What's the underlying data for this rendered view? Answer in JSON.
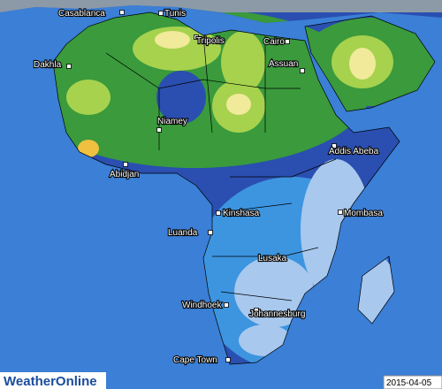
{
  "cities": [
    {
      "label": "Casablanca"
    },
    {
      "label": "Tunis"
    },
    {
      "label": "Tripolis"
    },
    {
      "label": "Cairo"
    },
    {
      "label": "Dakhla"
    },
    {
      "label": "Assuan"
    },
    {
      "label": "Niamey"
    },
    {
      "label": "Addis Abeba"
    },
    {
      "label": "Abidjan"
    },
    {
      "label": "Kinshasa"
    },
    {
      "label": "Mombasa"
    },
    {
      "label": "Luanda"
    },
    {
      "label": "Lusaka"
    },
    {
      "label": "Windhoek"
    },
    {
      "label": "Johannesburg"
    },
    {
      "label": "Cape Town"
    }
  ],
  "logo": "WeatherOnline",
  "date": "2015-04-05"
}
